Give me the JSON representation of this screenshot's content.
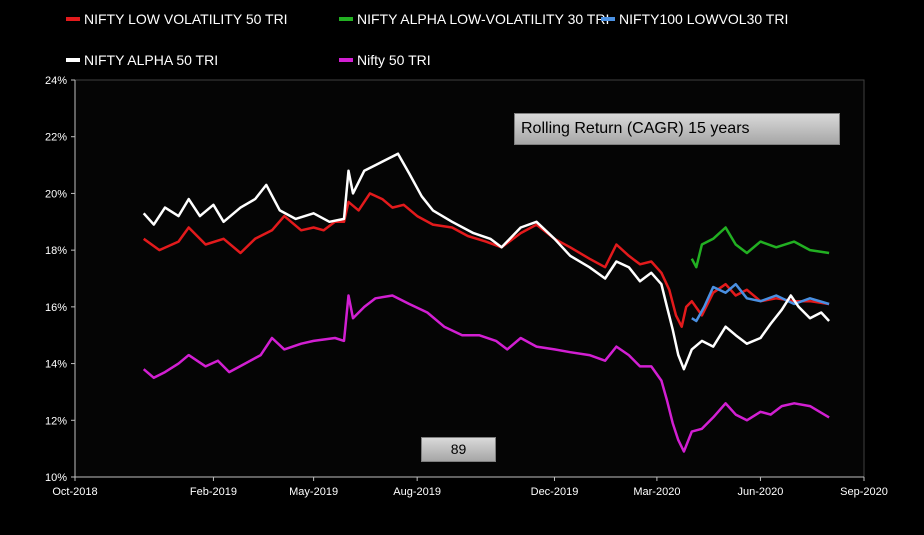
{
  "legend": [
    {
      "name": "NIFTY LOW VOLATILITY 50 TRI",
      "color": "#e31a1c"
    },
    {
      "name": "NIFTY ALPHA LOW-VOLATILITY 30 TRI",
      "color": "#22b022"
    },
    {
      "name": "NIFTY100 LOWVOL30 TRI",
      "color": "#4a90e2"
    },
    {
      "name": "NIFTY ALPHA 50 TRI",
      "color": "#ffffff"
    },
    {
      "name": "Nifty 50 TRI",
      "color": "#d21fd2"
    }
  ],
  "annotations": {
    "title_box": "Rolling Return (CAGR) 15 years",
    "count_box": "89"
  },
  "chart_data": {
    "type": "line",
    "title": "Rolling Return (CAGR) 15 years",
    "xlabel": "",
    "ylabel": "",
    "x_ticks": [
      "Oct-2018",
      "Feb-2019",
      "May-2019",
      "Aug-2019",
      "Dec-2019",
      "Mar-2020",
      "Jun-2020",
      "Sep-2020"
    ],
    "y_ticks": [
      "10%",
      "12%",
      "14%",
      "16%",
      "18%",
      "20%",
      "22%",
      "24%"
    ],
    "ylim": [
      10,
      24
    ],
    "xlim": [
      "2018-10-01",
      "2020-09-01"
    ],
    "grid": false,
    "legend_position": "top",
    "series": [
      {
        "name": "NIFTY LOW VOLATILITY 50 TRI",
        "color": "#e31a1c",
        "points": [
          [
            "2018-12-01",
            18.4
          ],
          [
            "2018-12-15",
            18.0
          ],
          [
            "2019-01-01",
            18.3
          ],
          [
            "2019-01-10",
            18.8
          ],
          [
            "2019-01-25",
            18.2
          ],
          [
            "2019-02-10",
            18.4
          ],
          [
            "2019-02-25",
            17.9
          ],
          [
            "2019-03-10",
            18.4
          ],
          [
            "2019-03-25",
            18.7
          ],
          [
            "2019-04-05",
            19.2
          ],
          [
            "2019-04-20",
            18.7
          ],
          [
            "2019-05-01",
            18.8
          ],
          [
            "2019-05-10",
            18.7
          ],
          [
            "2019-05-20",
            19.0
          ],
          [
            "2019-05-28",
            19.0
          ],
          [
            "2019-06-01",
            19.7
          ],
          [
            "2019-06-10",
            19.4
          ],
          [
            "2019-06-20",
            20.0
          ],
          [
            "2019-07-01",
            19.8
          ],
          [
            "2019-07-10",
            19.5
          ],
          [
            "2019-07-20",
            19.6
          ],
          [
            "2019-08-01",
            19.2
          ],
          [
            "2019-08-15",
            18.9
          ],
          [
            "2019-09-01",
            18.8
          ],
          [
            "2019-09-15",
            18.5
          ],
          [
            "2019-10-01",
            18.3
          ],
          [
            "2019-10-15",
            18.1
          ],
          [
            "2019-11-01",
            18.6
          ],
          [
            "2019-11-15",
            18.9
          ],
          [
            "2019-12-01",
            18.4
          ],
          [
            "2019-12-15",
            18.1
          ],
          [
            "2020-01-01",
            17.7
          ],
          [
            "2020-01-15",
            17.4
          ],
          [
            "2020-01-25",
            18.2
          ],
          [
            "2020-02-05",
            17.8
          ],
          [
            "2020-02-15",
            17.5
          ],
          [
            "2020-02-25",
            17.6
          ],
          [
            "2020-03-05",
            17.2
          ],
          [
            "2020-03-12",
            16.6
          ],
          [
            "2020-03-18",
            15.7
          ],
          [
            "2020-03-23",
            15.3
          ],
          [
            "2020-03-27",
            16.0
          ],
          [
            "2020-04-01",
            16.2
          ],
          [
            "2020-04-10",
            15.7
          ],
          [
            "2020-04-20",
            16.5
          ],
          [
            "2020-05-01",
            16.8
          ],
          [
            "2020-05-10",
            16.4
          ],
          [
            "2020-05-20",
            16.6
          ],
          [
            "2020-06-01",
            16.2
          ],
          [
            "2020-06-15",
            16.3
          ],
          [
            "2020-07-01",
            16.2
          ],
          [
            "2020-07-15",
            16.2
          ],
          [
            "2020-08-01",
            16.1
          ]
        ]
      },
      {
        "name": "NIFTY ALPHA LOW-VOLATILITY 30 TRI",
        "color": "#22b022",
        "points": [
          [
            "2020-04-01",
            17.7
          ],
          [
            "2020-04-05",
            17.4
          ],
          [
            "2020-04-10",
            18.2
          ],
          [
            "2020-04-20",
            18.4
          ],
          [
            "2020-05-01",
            18.8
          ],
          [
            "2020-05-10",
            18.2
          ],
          [
            "2020-05-20",
            17.9
          ],
          [
            "2020-06-01",
            18.3
          ],
          [
            "2020-06-15",
            18.1
          ],
          [
            "2020-07-01",
            18.3
          ],
          [
            "2020-07-15",
            18.0
          ],
          [
            "2020-08-01",
            17.9
          ]
        ]
      },
      {
        "name": "NIFTY100 LOWVOL30 TRI",
        "color": "#4a90e2",
        "points": [
          [
            "2020-04-01",
            15.6
          ],
          [
            "2020-04-05",
            15.5
          ],
          [
            "2020-04-12",
            16.0
          ],
          [
            "2020-04-20",
            16.7
          ],
          [
            "2020-05-01",
            16.5
          ],
          [
            "2020-05-10",
            16.8
          ],
          [
            "2020-05-20",
            16.3
          ],
          [
            "2020-06-01",
            16.2
          ],
          [
            "2020-06-15",
            16.4
          ],
          [
            "2020-07-01",
            16.1
          ],
          [
            "2020-07-15",
            16.3
          ],
          [
            "2020-08-01",
            16.1
          ]
        ]
      },
      {
        "name": "NIFTY ALPHA 50 TRI",
        "color": "#ffffff",
        "points": [
          [
            "2018-12-01",
            19.3
          ],
          [
            "2018-12-10",
            18.9
          ],
          [
            "2018-12-20",
            19.5
          ],
          [
            "2019-01-01",
            19.2
          ],
          [
            "2019-01-10",
            19.8
          ],
          [
            "2019-01-20",
            19.2
          ],
          [
            "2019-02-01",
            19.6
          ],
          [
            "2019-02-10",
            19.0
          ],
          [
            "2019-02-25",
            19.5
          ],
          [
            "2019-03-10",
            19.8
          ],
          [
            "2019-03-20",
            20.3
          ],
          [
            "2019-04-01",
            19.4
          ],
          [
            "2019-04-15",
            19.1
          ],
          [
            "2019-05-01",
            19.3
          ],
          [
            "2019-05-15",
            19.0
          ],
          [
            "2019-05-28",
            19.1
          ],
          [
            "2019-06-01",
            20.8
          ],
          [
            "2019-06-05",
            20.0
          ],
          [
            "2019-06-15",
            20.8
          ],
          [
            "2019-06-25",
            21.0
          ],
          [
            "2019-07-05",
            21.2
          ],
          [
            "2019-07-15",
            21.4
          ],
          [
            "2019-07-25",
            20.7
          ],
          [
            "2019-08-05",
            19.9
          ],
          [
            "2019-08-15",
            19.4
          ],
          [
            "2019-09-01",
            19.0
          ],
          [
            "2019-09-20",
            18.6
          ],
          [
            "2019-10-05",
            18.4
          ],
          [
            "2019-10-15",
            18.1
          ],
          [
            "2019-11-01",
            18.8
          ],
          [
            "2019-11-15",
            19.0
          ],
          [
            "2019-12-01",
            18.4
          ],
          [
            "2019-12-15",
            17.8
          ],
          [
            "2020-01-01",
            17.4
          ],
          [
            "2020-01-15",
            17.0
          ],
          [
            "2020-01-25",
            17.6
          ],
          [
            "2020-02-05",
            17.4
          ],
          [
            "2020-02-15",
            16.9
          ],
          [
            "2020-02-25",
            17.2
          ],
          [
            "2020-03-05",
            16.8
          ],
          [
            "2020-03-10",
            16.0
          ],
          [
            "2020-03-15",
            15.2
          ],
          [
            "2020-03-20",
            14.3
          ],
          [
            "2020-03-25",
            13.8
          ],
          [
            "2020-04-01",
            14.5
          ],
          [
            "2020-04-10",
            14.8
          ],
          [
            "2020-04-20",
            14.6
          ],
          [
            "2020-05-01",
            15.3
          ],
          [
            "2020-05-10",
            15.0
          ],
          [
            "2020-05-20",
            14.7
          ],
          [
            "2020-06-01",
            14.9
          ],
          [
            "2020-06-10",
            15.4
          ],
          [
            "2020-06-20",
            15.9
          ],
          [
            "2020-06-28",
            16.4
          ],
          [
            "2020-07-05",
            16.0
          ],
          [
            "2020-07-15",
            15.6
          ],
          [
            "2020-07-25",
            15.8
          ],
          [
            "2020-08-01",
            15.5
          ]
        ]
      },
      {
        "name": "Nifty 50 TRI",
        "color": "#d21fd2",
        "points": [
          [
            "2018-12-01",
            13.8
          ],
          [
            "2018-12-10",
            13.5
          ],
          [
            "2018-12-20",
            13.7
          ],
          [
            "2019-01-01",
            14.0
          ],
          [
            "2019-01-10",
            14.3
          ],
          [
            "2019-01-25",
            13.9
          ],
          [
            "2019-02-05",
            14.1
          ],
          [
            "2019-02-15",
            13.7
          ],
          [
            "2019-03-01",
            14.0
          ],
          [
            "2019-03-15",
            14.3
          ],
          [
            "2019-03-25",
            14.9
          ],
          [
            "2019-04-05",
            14.5
          ],
          [
            "2019-04-20",
            14.7
          ],
          [
            "2019-05-01",
            14.8
          ],
          [
            "2019-05-20",
            14.9
          ],
          [
            "2019-05-28",
            14.8
          ],
          [
            "2019-06-01",
            16.4
          ],
          [
            "2019-06-05",
            15.6
          ],
          [
            "2019-06-15",
            16.0
          ],
          [
            "2019-06-25",
            16.3
          ],
          [
            "2019-07-10",
            16.4
          ],
          [
            "2019-07-25",
            16.1
          ],
          [
            "2019-08-10",
            15.8
          ],
          [
            "2019-08-25",
            15.3
          ],
          [
            "2019-09-10",
            15.0
          ],
          [
            "2019-09-25",
            15.0
          ],
          [
            "2019-10-10",
            14.8
          ],
          [
            "2019-10-20",
            14.5
          ],
          [
            "2019-11-01",
            14.9
          ],
          [
            "2019-11-15",
            14.6
          ],
          [
            "2019-12-01",
            14.5
          ],
          [
            "2019-12-15",
            14.4
          ],
          [
            "2020-01-01",
            14.3
          ],
          [
            "2020-01-15",
            14.1
          ],
          [
            "2020-01-25",
            14.6
          ],
          [
            "2020-02-05",
            14.3
          ],
          [
            "2020-02-15",
            13.9
          ],
          [
            "2020-02-25",
            13.9
          ],
          [
            "2020-03-05",
            13.4
          ],
          [
            "2020-03-10",
            12.7
          ],
          [
            "2020-03-15",
            11.9
          ],
          [
            "2020-03-20",
            11.3
          ],
          [
            "2020-03-25",
            10.9
          ],
          [
            "2020-04-01",
            11.6
          ],
          [
            "2020-04-10",
            11.7
          ],
          [
            "2020-04-20",
            12.1
          ],
          [
            "2020-05-01",
            12.6
          ],
          [
            "2020-05-10",
            12.2
          ],
          [
            "2020-05-20",
            12.0
          ],
          [
            "2020-06-01",
            12.3
          ],
          [
            "2020-06-10",
            12.2
          ],
          [
            "2020-06-20",
            12.5
          ],
          [
            "2020-07-01",
            12.6
          ],
          [
            "2020-07-15",
            12.5
          ],
          [
            "2020-08-01",
            12.1
          ]
        ]
      }
    ]
  }
}
